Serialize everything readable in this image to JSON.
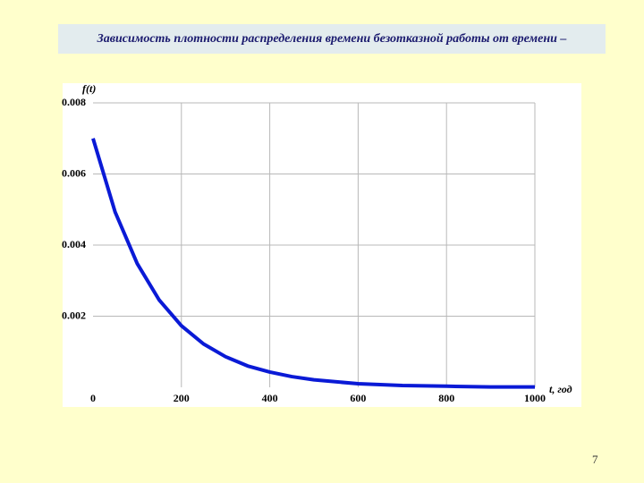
{
  "title": "Зависимость плотности распределения времени безотказной работы от времени –",
  "page_number": "7",
  "chart_data": {
    "type": "line",
    "y_label": "f(t)",
    "x_label": "t, год",
    "x": [
      0,
      50,
      100,
      150,
      200,
      250,
      300,
      350,
      400,
      450,
      500,
      600,
      700,
      800,
      900,
      1000
    ],
    "series": [
      {
        "name": "f(t)",
        "color": "#0a1ad6",
        "values": [
          0.007,
          0.00493,
          0.00348,
          0.00245,
          0.00173,
          0.00122,
          0.00086,
          0.0006,
          0.00043,
          0.0003,
          0.00021,
          0.0001,
          5e-05,
          3e-05,
          1e-05,
          1e-05
        ]
      }
    ],
    "xlim": [
      0,
      1000
    ],
    "xticks": [
      0,
      200,
      400,
      600,
      800,
      1000
    ],
    "ylim": [
      0,
      0.008
    ],
    "yticks": [
      0.002,
      0.004,
      0.006,
      0.008
    ],
    "grid": true
  }
}
